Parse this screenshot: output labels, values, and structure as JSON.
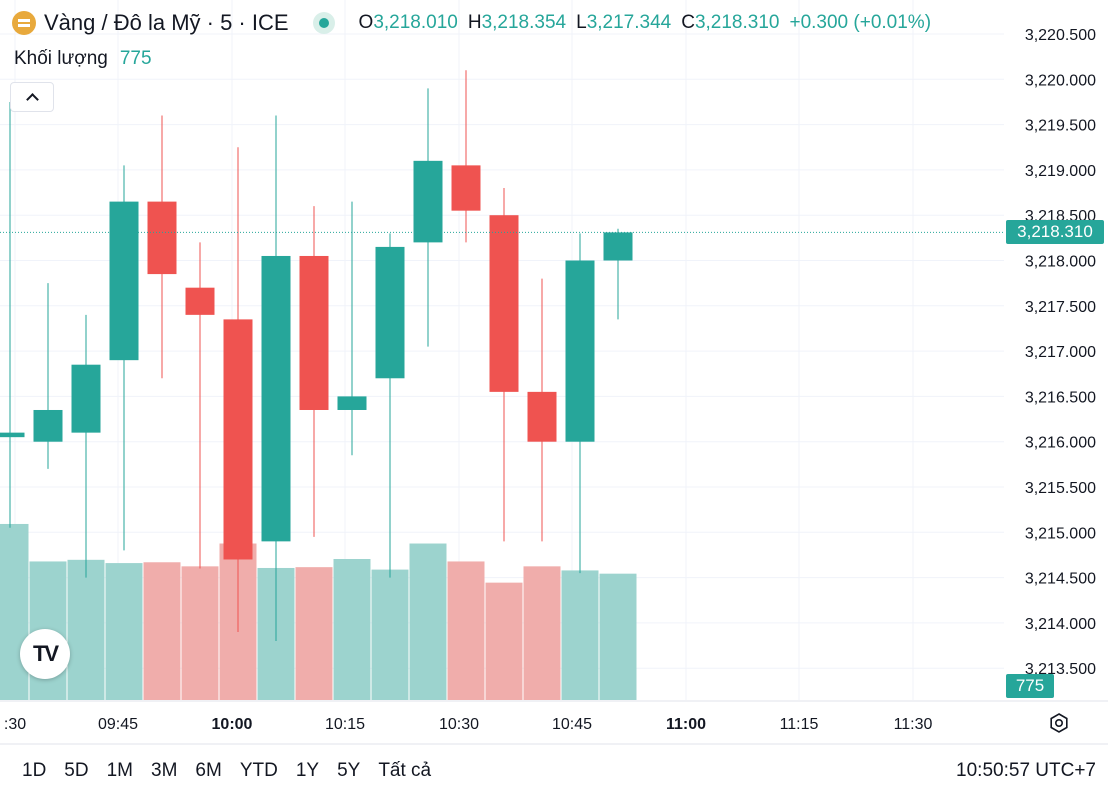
{
  "header": {
    "symbol_title": "Vàng / Đô la Mỹ · 5 · ICE",
    "logo_icon": "gold-bars-icon",
    "live_icon": "market-open-dot-icon",
    "ohlc": [
      {
        "key": "O",
        "value": "3,218.010"
      },
      {
        "key": "H",
        "value": "3,218.354"
      },
      {
        "key": "L",
        "value": "3,217.344"
      },
      {
        "key": "C",
        "value": "3,218.310"
      }
    ],
    "change": "+0.300 (+0.01%)"
  },
  "volume_legend": {
    "label": "Khối lượng",
    "value": "775"
  },
  "price_label": "3,218.310",
  "volume_label": "775",
  "colors": {
    "up": "#26a69a",
    "down": "#ef5350",
    "up_volume": "#9cd3ce",
    "down_volume": "#f0adab"
  },
  "range_buttons": [
    "1D",
    "5D",
    "1M",
    "3M",
    "6M",
    "YTD",
    "1Y",
    "5Y",
    "Tất cả"
  ],
  "clock": "10:50:57 UTC+7",
  "chart_data": {
    "type": "candlestick",
    "y_ticks": [
      "3,213.500",
      "3,214.000",
      "3,214.500",
      "3,215.000",
      "3,215.500",
      "3,216.000",
      "3,216.500",
      "3,217.000",
      "3,217.500",
      "3,218.000",
      "3,218.500",
      "3,219.000",
      "3,219.500",
      "3,220.000",
      "3,220.500"
    ],
    "ylim": [
      3213.5,
      3220.5
    ],
    "x_ticks": [
      ":30",
      "09:45",
      "10:00",
      "10:15",
      "10:30",
      "10:45",
      "11:00",
      "11:15",
      "11:30"
    ],
    "x_ticks_bold": [
      "10:00",
      "11:00"
    ],
    "last_price": 3218.31,
    "candles": [
      {
        "time": "09:35",
        "o": 3216.05,
        "h": 3219.75,
        "l": 3215.05,
        "c": 3216.1,
        "v": 1080
      },
      {
        "time": "09:40",
        "o": 3216.0,
        "h": 3217.75,
        "l": 3215.7,
        "c": 3216.35,
        "v": 850
      },
      {
        "time": "09:45",
        "o": 3216.1,
        "h": 3217.4,
        "l": 3214.5,
        "c": 3216.85,
        "v": 860
      },
      {
        "time": "09:50",
        "o": 3216.9,
        "h": 3219.05,
        "l": 3214.8,
        "c": 3218.65,
        "v": 840
      },
      {
        "time": "09:55",
        "o": 3218.65,
        "h": 3219.6,
        "l": 3216.7,
        "c": 3217.85,
        "v": 845
      },
      {
        "time": "10:00",
        "o": 3217.7,
        "h": 3218.2,
        "l": 3214.6,
        "c": 3217.4,
        "v": 820
      },
      {
        "time": "10:05",
        "o": 3217.35,
        "h": 3219.25,
        "l": 3213.9,
        "c": 3214.7,
        "v": 960
      },
      {
        "time": "10:10",
        "o": 3214.9,
        "h": 3219.6,
        "l": 3213.8,
        "c": 3218.05,
        "v": 810
      },
      {
        "time": "10:15",
        "o": 3218.05,
        "h": 3218.6,
        "l": 3214.95,
        "c": 3216.35,
        "v": 815
      },
      {
        "time": "10:20",
        "o": 3216.35,
        "h": 3218.65,
        "l": 3215.85,
        "c": 3216.5,
        "v": 865
      },
      {
        "time": "10:25",
        "o": 3216.7,
        "h": 3218.3,
        "l": 3214.5,
        "c": 3218.15,
        "v": 800
      },
      {
        "time": "10:30",
        "o": 3218.2,
        "h": 3219.9,
        "l": 3217.05,
        "c": 3219.1,
        "v": 960
      },
      {
        "time": "10:35",
        "o": 3219.05,
        "h": 3220.1,
        "l": 3218.2,
        "c": 3218.55,
        "v": 850
      },
      {
        "time": "10:40",
        "o": 3218.5,
        "h": 3218.8,
        "l": 3214.9,
        "c": 3216.55,
        "v": 720
      },
      {
        "time": "10:45",
        "o": 3216.55,
        "h": 3217.8,
        "l": 3214.9,
        "c": 3216.0,
        "v": 820
      },
      {
        "time": "10:50",
        "o": 3216.0,
        "h": 3218.3,
        "l": 3214.55,
        "c": 3218.0,
        "v": 795
      },
      {
        "time": "10:55",
        "o": 3218.0,
        "h": 3218.35,
        "l": 3217.35,
        "c": 3218.31,
        "v": 775
      }
    ]
  }
}
